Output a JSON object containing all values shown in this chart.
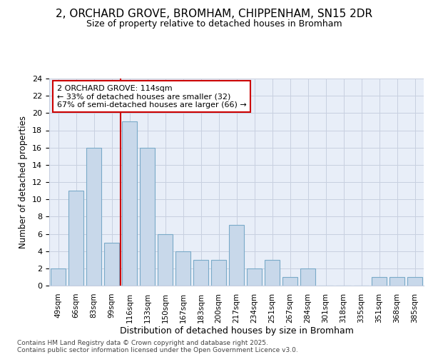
{
  "title_line1": "2, ORCHARD GROVE, BROMHAM, CHIPPENHAM, SN15 2DR",
  "title_line2": "Size of property relative to detached houses in Bromham",
  "xlabel": "Distribution of detached houses by size in Bromham",
  "ylabel": "Number of detached properties",
  "categories": [
    "49sqm",
    "66sqm",
    "83sqm",
    "99sqm",
    "116sqm",
    "133sqm",
    "150sqm",
    "167sqm",
    "183sqm",
    "200sqm",
    "217sqm",
    "234sqm",
    "251sqm",
    "267sqm",
    "284sqm",
    "301sqm",
    "318sqm",
    "335sqm",
    "351sqm",
    "368sqm",
    "385sqm"
  ],
  "values": [
    2,
    11,
    16,
    5,
    19,
    16,
    6,
    4,
    3,
    3,
    7,
    2,
    3,
    1,
    2,
    0,
    0,
    0,
    1,
    1,
    1
  ],
  "bar_color": "#c8d8ea",
  "bar_edge_color": "#7aaac8",
  "highlight_index": 4,
  "highlight_line_color": "#cc0000",
  "ylim": [
    0,
    24
  ],
  "yticks": [
    0,
    2,
    4,
    6,
    8,
    10,
    12,
    14,
    16,
    18,
    20,
    22,
    24
  ],
  "annotation_text": "2 ORCHARD GROVE: 114sqm\n← 33% of detached houses are smaller (32)\n67% of semi-detached houses are larger (66) →",
  "annotation_box_color": "#ffffff",
  "annotation_box_edge": "#cc0000",
  "footer_text": "Contains HM Land Registry data © Crown copyright and database right 2025.\nContains public sector information licensed under the Open Government Licence v3.0.",
  "bg_color": "#ffffff",
  "plot_bg_color": "#e8eef8",
  "grid_color": "#c8d0e0"
}
